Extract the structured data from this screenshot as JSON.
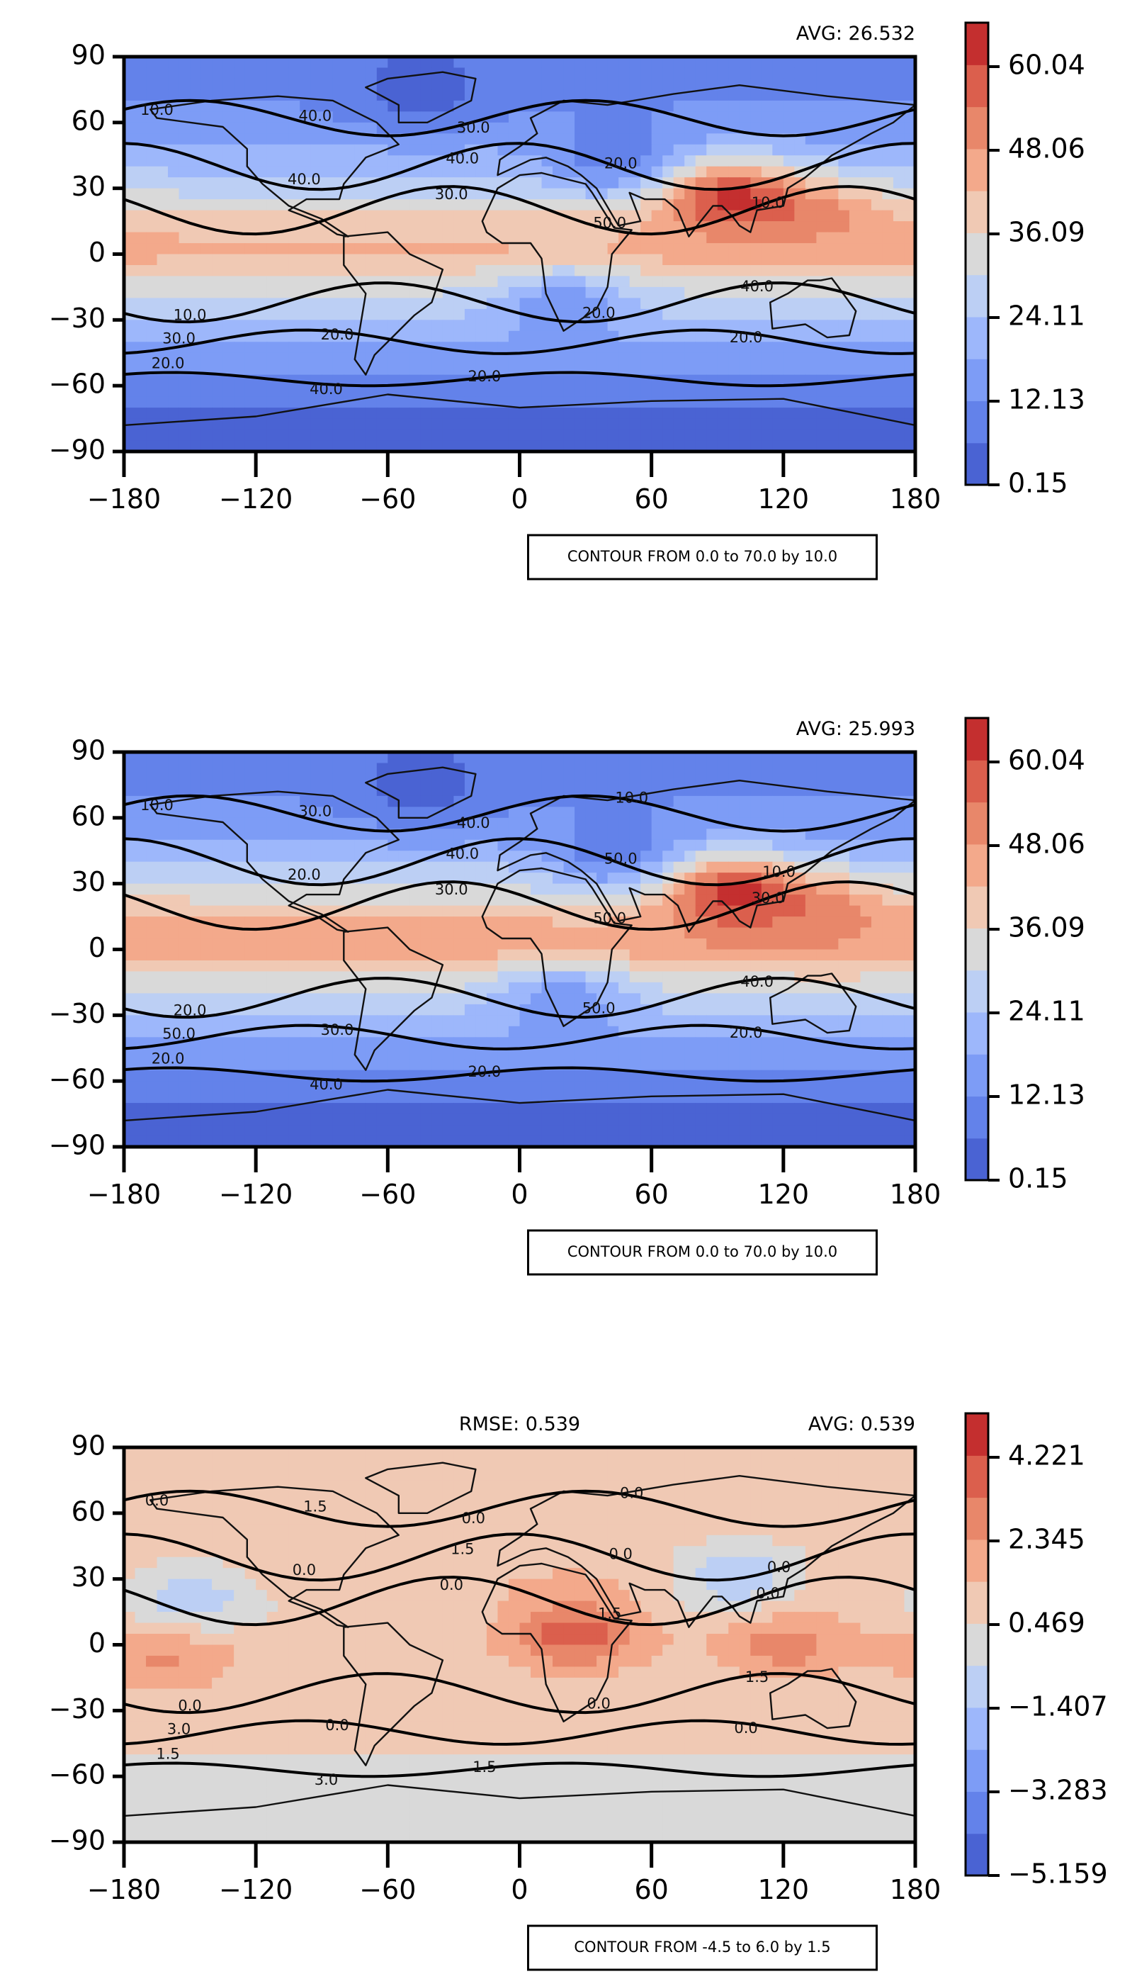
{
  "chart_data": [
    {
      "type": "heatmap",
      "title": "",
      "xlabel": "",
      "ylabel": "",
      "x_ticks": [
        "−180",
        "−120",
        "−60",
        "0",
        "60",
        "120",
        "180"
      ],
      "y_ticks": [
        "90",
        "60",
        "30",
        "0",
        "−30",
        "−60",
        "−90"
      ],
      "xlim": [
        -180,
        180
      ],
      "ylim": [
        -90,
        90
      ],
      "stats": {
        "avg": "AVG: 26.532"
      },
      "colorbar": {
        "ticks": [
          "60.04",
          "48.06",
          "36.09",
          "24.11",
          "12.13",
          "0.15"
        ],
        "min": 0.15,
        "max": 66.03,
        "levels": 11
      },
      "contour_note": "CONTOUR FROM 0.0 to 70.0 by 10.0",
      "contour_labels": [
        "10.0",
        "40.0",
        "30.0",
        "20.0",
        "20.0",
        "20.0",
        "40.0",
        "40.0",
        "50.0",
        "40.0",
        "30.0",
        "40.0",
        "30.0",
        "20.0",
        "10.0",
        "10.0",
        "20.0",
        "20.0"
      ],
      "band_profile": {
        "lat": [
          90,
          60,
          45,
          30,
          15,
          0,
          -15,
          -30,
          -45,
          -60,
          -75,
          -90
        ],
        "value": [
          8,
          14,
          20,
          28,
          40,
          44,
          32,
          24,
          16,
          9,
          4,
          2
        ]
      },
      "blobs": [
        {
          "lon": 95,
          "lat": 25,
          "value": 62
        },
        {
          "lon": 140,
          "lat": 15,
          "value": 48
        },
        {
          "lon": -45,
          "lat": 75,
          "value": 3
        },
        {
          "lon": 20,
          "lat": -25,
          "value": 14
        },
        {
          "lon": 45,
          "lat": 45,
          "value": 8
        }
      ]
    },
    {
      "type": "heatmap",
      "title": "",
      "xlabel": "",
      "ylabel": "",
      "x_ticks": [
        "−180",
        "−120",
        "−60",
        "0",
        "60",
        "120",
        "180"
      ],
      "y_ticks": [
        "90",
        "60",
        "30",
        "0",
        "−30",
        "−60",
        "−90"
      ],
      "xlim": [
        -180,
        180
      ],
      "ylim": [
        -90,
        90
      ],
      "stats": {
        "avg": "AVG: 25.993"
      },
      "colorbar": {
        "ticks": [
          "60.04",
          "48.06",
          "36.09",
          "24.11",
          "12.13",
          "0.15"
        ],
        "min": 0.15,
        "max": 66.03,
        "levels": 11
      },
      "contour_note": "CONTOUR FROM 0.0 to 70.0 by 10.0",
      "contour_labels": [
        "10.0",
        "20.0",
        "30.0",
        "50.0",
        "20.0",
        "20.0",
        "30.0",
        "40.0",
        "50.0",
        "40.0",
        "50.0",
        "40.0",
        "40.0",
        "50.0",
        "30.0",
        "20.0",
        "30.0",
        "20.0",
        "10.0",
        "10.0"
      ],
      "band_profile": {
        "lat": [
          90,
          60,
          45,
          30,
          15,
          0,
          -15,
          -30,
          -45,
          -60,
          -75,
          -90
        ],
        "value": [
          8,
          14,
          20,
          30,
          42,
          46,
          33,
          24,
          16,
          9,
          4,
          2
        ]
      },
      "blobs": [
        {
          "lon": 95,
          "lat": 25,
          "value": 62
        },
        {
          "lon": 140,
          "lat": 15,
          "value": 50
        },
        {
          "lon": -45,
          "lat": 75,
          "value": 3
        },
        {
          "lon": 20,
          "lat": -25,
          "value": 14
        },
        {
          "lon": 45,
          "lat": 45,
          "value": 8
        }
      ]
    },
    {
      "type": "heatmap",
      "title": "",
      "xlabel": "",
      "ylabel": "",
      "x_ticks": [
        "−180",
        "−120",
        "−60",
        "0",
        "60",
        "120",
        "180"
      ],
      "y_ticks": [
        "90",
        "60",
        "30",
        "0",
        "−30",
        "−60",
        "−90"
      ],
      "xlim": [
        -180,
        180
      ],
      "ylim": [
        -90,
        90
      ],
      "stats": {
        "rmse": "RMSE: 0.539",
        "avg": "AVG: 0.539"
      },
      "colorbar": {
        "ticks": [
          "4.221",
          "2.345",
          "0.469",
          "−1.407",
          "−3.283",
          "−5.159"
        ],
        "min": -5.159,
        "max": 5.159,
        "levels": 11
      },
      "contour_note": "CONTOUR FROM -4.5 to 6.0 by 1.5",
      "contour_labels": [
        "0.0",
        "0.0",
        "0.0",
        "0.0",
        "0.0",
        "1.5",
        "1.5",
        "1.5",
        "1.5",
        "1.5",
        "3.0",
        "3.0",
        "0.0",
        "0.0",
        "0.0",
        "0.0",
        "0.0",
        "1.5",
        "0.0",
        "0.0"
      ],
      "band_profile": {
        "lat": [
          90,
          60,
          45,
          30,
          15,
          0,
          -15,
          -30,
          -45,
          -60,
          -75,
          -90
        ],
        "value": [
          1.0,
          1.2,
          1.0,
          1.3,
          0.8,
          1.0,
          0.6,
          0.9,
          0.8,
          0.0,
          -0.2,
          0.0
        ]
      },
      "blobs": [
        {
          "lon": 25,
          "lat": 5,
          "value": 3.8
        },
        {
          "lon": -150,
          "lat": 20,
          "value": -1.2
        },
        {
          "lon": 100,
          "lat": 30,
          "value": -1.2
        },
        {
          "lon": -160,
          "lat": -5,
          "value": 2.6
        },
        {
          "lon": 120,
          "lat": 0,
          "value": 2.8
        }
      ]
    }
  ]
}
